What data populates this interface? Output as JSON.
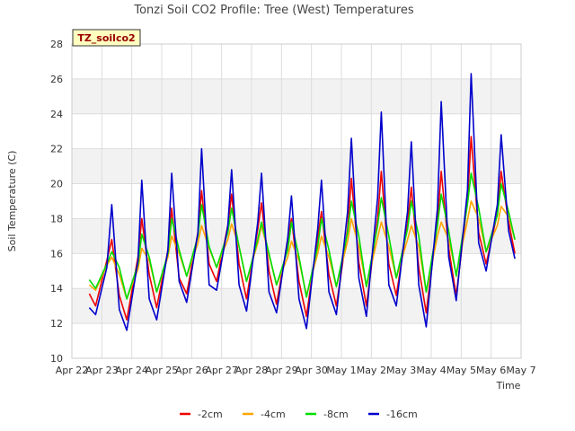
{
  "chart_data": {
    "type": "line",
    "title": "Tonzi Soil CO2 Profile: Tree (West) Temperatures",
    "xlabel": "Time",
    "ylabel": "Soil Temperature (C)",
    "badge": "TZ_soilco2",
    "ylim": [
      10,
      28
    ],
    "yticks": [
      10,
      12,
      14,
      16,
      18,
      20,
      22,
      24,
      26,
      28
    ],
    "xlim": [
      "2024-04-22",
      "2024-05-07"
    ],
    "xticks": [
      "Apr 22",
      "Apr 23",
      "Apr 24",
      "Apr 25",
      "Apr 26",
      "Apr 27",
      "Apr 28",
      "Apr 29",
      "Apr 30",
      "May 1",
      "May 2",
      "May 3",
      "May 4",
      "May 5",
      "May 6",
      "May 7"
    ],
    "grid": true,
    "legend_position": "bottom-center",
    "x_days": [
      "2024-04-22 14:00",
      "2024-04-22 19:00",
      "2024-04-23 04:00",
      "2024-04-23 08:00",
      "2024-04-23 14:00",
      "2024-04-23 20:00",
      "2024-04-24 05:00",
      "2024-04-24 08:00",
      "2024-04-24 14:00",
      "2024-04-24 20:00",
      "2024-04-25 05:00",
      "2024-04-25 08:00",
      "2024-04-25 14:00",
      "2024-04-25 20:00",
      "2024-04-26 05:00",
      "2024-04-26 08:00",
      "2024-04-26 14:00",
      "2024-04-26 20:00",
      "2024-04-27 05:00",
      "2024-04-27 08:00",
      "2024-04-27 14:00",
      "2024-04-27 20:00",
      "2024-04-28 05:00",
      "2024-04-28 08:00",
      "2024-04-28 14:00",
      "2024-04-28 20:00",
      "2024-04-29 05:00",
      "2024-04-29 08:00",
      "2024-04-29 14:00",
      "2024-04-29 20:00",
      "2024-04-30 05:00",
      "2024-04-30 08:00",
      "2024-04-30 14:00",
      "2024-04-30 20:00",
      "2024-05-01 05:00",
      "2024-05-01 08:00",
      "2024-05-01 14:00",
      "2024-05-01 20:00",
      "2024-05-02 05:00",
      "2024-05-02 08:00",
      "2024-05-02 14:00",
      "2024-05-02 20:00",
      "2024-05-03 05:00",
      "2024-05-03 08:00",
      "2024-05-03 14:00",
      "2024-05-03 20:00",
      "2024-05-04 05:00",
      "2024-05-04 08:00",
      "2024-05-04 14:00",
      "2024-05-04 20:00",
      "2024-05-05 05:00",
      "2024-05-05 08:00",
      "2024-05-05 14:00",
      "2024-05-05 20:00",
      "2024-05-06 05:00",
      "2024-05-06 08:00",
      "2024-05-06 14:00",
      "2024-05-06 19:00"
    ],
    "series": [
      {
        "name": "-2cm",
        "color": "#ee0000",
        "values": [
          13.7,
          13.0,
          15.6,
          16.8,
          13.6,
          12.2,
          15.8,
          18.0,
          14.8,
          12.9,
          16.2,
          18.6,
          14.6,
          13.7,
          17.2,
          19.6,
          15.4,
          14.4,
          17.6,
          19.4,
          15.4,
          13.4,
          17.4,
          18.9,
          15.0,
          13.1,
          16.7,
          18.0,
          14.4,
          12.4,
          16.9,
          18.4,
          14.8,
          13.0,
          17.4,
          20.3,
          15.5,
          13.0,
          18.0,
          20.7,
          15.4,
          13.6,
          17.7,
          19.8,
          15.2,
          12.6,
          17.8,
          20.7,
          16.3,
          13.6,
          19.0,
          22.7,
          17.2,
          15.4,
          18.3,
          20.7,
          17.8,
          16.0
        ]
      },
      {
        "name": "-4cm",
        "color": "#ffa500",
        "values": [
          14.2,
          13.9,
          15.3,
          15.8,
          14.8,
          13.4,
          15.1,
          16.3,
          15.6,
          13.8,
          15.8,
          17.0,
          16.0,
          14.7,
          16.6,
          17.6,
          16.3,
          15.2,
          16.8,
          17.7,
          16.4,
          14.4,
          16.6,
          17.6,
          15.9,
          14.2,
          15.8,
          16.7,
          15.6,
          13.6,
          16.0,
          17.0,
          15.8,
          14.1,
          16.7,
          18.0,
          16.4,
          14.1,
          16.9,
          17.8,
          16.4,
          14.6,
          16.8,
          17.6,
          16.4,
          13.8,
          17.0,
          17.8,
          16.8,
          14.8,
          17.9,
          19.0,
          18.0,
          16.1,
          17.6,
          18.7,
          18.1,
          16.8
        ]
      },
      {
        "name": "-8cm",
        "color": "#00dd00",
        "values": [
          14.5,
          14.0,
          15.4,
          16.1,
          15.2,
          13.4,
          15.4,
          17.1,
          15.8,
          13.8,
          16.0,
          18.0,
          16.2,
          14.7,
          17.0,
          18.8,
          16.4,
          15.2,
          17.2,
          18.6,
          16.4,
          14.4,
          16.8,
          17.8,
          16.0,
          14.2,
          16.2,
          17.8,
          15.8,
          13.5,
          16.4,
          18.0,
          16.2,
          14.1,
          17.2,
          19.0,
          17.0,
          14.1,
          17.6,
          19.2,
          17.0,
          14.6,
          17.4,
          19.0,
          17.0,
          13.8,
          17.6,
          19.4,
          17.3,
          14.7,
          18.8,
          20.6,
          18.6,
          16.1,
          18.2,
          20.0,
          18.4,
          16.8
        ]
      },
      {
        "name": "-16cm",
        "color": "#0000cc",
        "values": [
          12.9,
          12.5,
          15.2,
          18.8,
          12.8,
          11.6,
          15.6,
          20.2,
          13.4,
          12.2,
          16.2,
          20.6,
          14.4,
          13.2,
          17.2,
          22.0,
          14.2,
          13.9,
          17.6,
          20.8,
          14.2,
          12.7,
          17.8,
          20.6,
          13.8,
          12.6,
          16.9,
          19.3,
          13.4,
          11.7,
          17.4,
          20.2,
          13.8,
          12.5,
          18.4,
          22.6,
          14.6,
          12.4,
          19.2,
          24.1,
          14.2,
          13.0,
          18.4,
          22.4,
          14.2,
          11.8,
          18.6,
          24.7,
          15.8,
          13.3,
          19.6,
          26.3,
          16.6,
          15.0,
          18.8,
          22.8,
          17.3,
          15.7
        ]
      }
    ]
  }
}
